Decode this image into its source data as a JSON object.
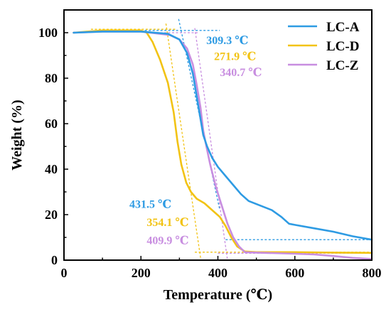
{
  "chart_data": {
    "type": "line",
    "title": "",
    "xlabel": "Temperature (℃)",
    "ylabel": "Weight (%)",
    "xlim": [
      0,
      800
    ],
    "ylim": [
      0,
      110
    ],
    "xticks": [
      0,
      200,
      400,
      600,
      800
    ],
    "yticks": [
      0,
      20,
      40,
      60,
      80,
      100
    ],
    "grid": false,
    "legend_position": "top-right",
    "series": [
      {
        "name": "LC-A",
        "color": "#2E9BE3",
        "points": [
          [
            25,
            100
          ],
          [
            100,
            100.5
          ],
          [
            200,
            100.5
          ],
          [
            270,
            99.5
          ],
          [
            300,
            97
          ],
          [
            320,
            91
          ],
          [
            335,
            82
          ],
          [
            345,
            72
          ],
          [
            355,
            62
          ],
          [
            362,
            55
          ],
          [
            372,
            50
          ],
          [
            385,
            45
          ],
          [
            400,
            41
          ],
          [
            420,
            37
          ],
          [
            440,
            33
          ],
          [
            460,
            29
          ],
          [
            480,
            26
          ],
          [
            510,
            24
          ],
          [
            540,
            22
          ],
          [
            565,
            19
          ],
          [
            585,
            16
          ],
          [
            600,
            15.5
          ],
          [
            650,
            14
          ],
          [
            700,
            12.5
          ],
          [
            750,
            10.5
          ],
          [
            800,
            9
          ]
        ]
      },
      {
        "name": "LC-D",
        "color": "#F2C314",
        "points": [
          [
            25,
            100
          ],
          [
            100,
            101
          ],
          [
            200,
            101
          ],
          [
            215,
            100
          ],
          [
            230,
            96
          ],
          [
            250,
            88
          ],
          [
            270,
            78
          ],
          [
            285,
            65
          ],
          [
            295,
            52
          ],
          [
            305,
            42
          ],
          [
            318,
            34
          ],
          [
            330,
            30
          ],
          [
            345,
            27
          ],
          [
            365,
            25
          ],
          [
            385,
            22
          ],
          [
            405,
            19
          ],
          [
            420,
            15
          ],
          [
            435,
            10
          ],
          [
            450,
            6
          ],
          [
            470,
            3.8
          ],
          [
            500,
            3.5
          ],
          [
            600,
            3.5
          ],
          [
            700,
            3.3
          ],
          [
            800,
            3.2
          ]
        ]
      },
      {
        "name": "LC-Z",
        "color": "#C88EE0",
        "points": [
          [
            25,
            100
          ],
          [
            100,
            100.5
          ],
          [
            200,
            100.5
          ],
          [
            275,
            99
          ],
          [
            300,
            97
          ],
          [
            320,
            93
          ],
          [
            335,
            86
          ],
          [
            345,
            77
          ],
          [
            355,
            67
          ],
          [
            362,
            57
          ],
          [
            370,
            50
          ],
          [
            380,
            42
          ],
          [
            395,
            32
          ],
          [
            410,
            24
          ],
          [
            425,
            16
          ],
          [
            440,
            10
          ],
          [
            455,
            6
          ],
          [
            470,
            3.5
          ],
          [
            500,
            3.3
          ],
          [
            600,
            2.8
          ],
          [
            650,
            2.5
          ],
          [
            700,
            1.8
          ],
          [
            750,
            1
          ],
          [
            800,
            0.5
          ]
        ]
      }
    ],
    "tangent_lines": [
      {
        "series": "LC-A",
        "color": "#2E9BE3",
        "x1": 210,
        "y1": 101,
        "x2": 405,
        "y2": 101
      },
      {
        "series": "LC-A",
        "color": "#2E9BE3",
        "x1": 298,
        "y1": 106,
        "x2": 405,
        "y2": 22
      },
      {
        "series": "LC-A",
        "color": "#2E9BE3",
        "x1": 420,
        "y1": 9,
        "x2": 800,
        "y2": 9
      },
      {
        "series": "LC-D",
        "color": "#F2C314",
        "x1": 70,
        "y1": 101.5,
        "x2": 290,
        "y2": 101.5
      },
      {
        "series": "LC-D",
        "color": "#F2C314",
        "x1": 265,
        "y1": 104,
        "x2": 355,
        "y2": 1
      },
      {
        "series": "LC-D",
        "color": "#F2C314",
        "x1": 340,
        "y1": 3.5,
        "x2": 800,
        "y2": 3.5
      },
      {
        "series": "LC-Z",
        "color": "#C88EE0",
        "x1": 230,
        "y1": 100,
        "x2": 350,
        "y2": 100
      },
      {
        "series": "LC-Z",
        "color": "#C88EE0",
        "x1": 340,
        "y1": 102,
        "x2": 425,
        "y2": 0
      },
      {
        "series": "LC-Z",
        "color": "#C88EE0",
        "x1": 400,
        "y1": 3,
        "x2": 800,
        "y2": 3
      }
    ],
    "annotations": [
      {
        "text": "309.3 ℃",
        "color": "#2E9BE3",
        "x": 370,
        "y": 95
      },
      {
        "text": "271.9 ℃",
        "color": "#F2C314",
        "x": 390,
        "y": 88
      },
      {
        "text": "340.7 ℃",
        "color": "#C88EE0",
        "x": 405,
        "y": 81
      },
      {
        "text": "431.5 ℃",
        "color": "#2E9BE3",
        "x": 170,
        "y": 23
      },
      {
        "text": "354.1 ℃",
        "color": "#F2C314",
        "x": 215,
        "y": 15
      },
      {
        "text": "409.9 ℃",
        "color": "#C88EE0",
        "x": 215,
        "y": 7
      }
    ]
  }
}
